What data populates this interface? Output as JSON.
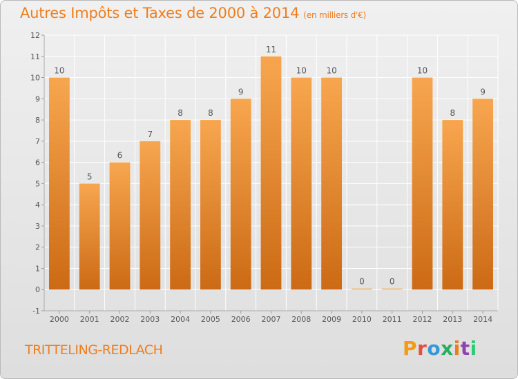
{
  "header": {
    "title": "Autres Impôts et Taxes de 2000 à 2014",
    "unit": "(en milliers d'€)"
  },
  "footer": {
    "commune": "TRITTELING-REDLACH",
    "logo_letters": [
      "P",
      "r",
      "o",
      "x",
      "i",
      "t",
      "i"
    ],
    "logo_colors": [
      "#f39c12",
      "#e74c3c",
      "#3498db",
      "#27ae60",
      "#e67e22",
      "#8e44ad",
      "#2ecc71"
    ]
  },
  "chart_data": {
    "type": "bar",
    "title": "Autres Impôts et Taxes de 2000 à 2014",
    "subtitle": "(en milliers d'€)",
    "categories": [
      "2000",
      "2001",
      "2002",
      "2003",
      "2004",
      "2005",
      "2006",
      "2007",
      "2008",
      "2009",
      "2010",
      "2011",
      "2012",
      "2013",
      "2014"
    ],
    "values": [
      10,
      5,
      6,
      7,
      8,
      8,
      9,
      11,
      10,
      10,
      0,
      0,
      10,
      8,
      9
    ],
    "data_labels": [
      "10",
      "5",
      "6",
      "7",
      "8",
      "8",
      "9",
      "11",
      "10",
      "10",
      "0",
      "0",
      "10",
      "8",
      "9"
    ],
    "yticks": [
      -1,
      0,
      1,
      2,
      3,
      4,
      5,
      6,
      7,
      8,
      9,
      10,
      11,
      12
    ],
    "ytick_labels": [
      "-1",
      "0",
      "1",
      "2",
      "3",
      "4",
      "5",
      "6",
      "7",
      "8",
      "9",
      "10",
      "11",
      "12"
    ],
    "ylim": [
      -1,
      12
    ],
    "grid": true,
    "colors": {
      "bar_light": "#f7a64f",
      "bar_dark": "#cc6a15",
      "grid": "#ffffff",
      "axis_text": "#555555",
      "label_text": "#555555"
    }
  }
}
